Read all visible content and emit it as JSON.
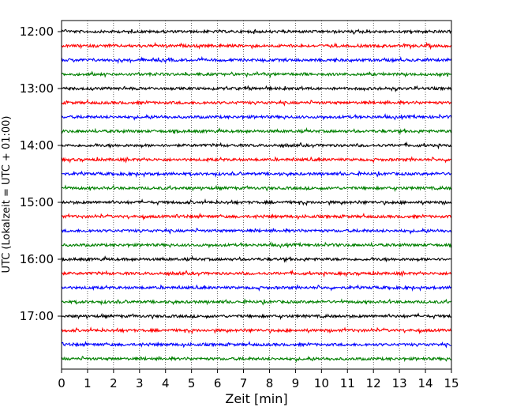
{
  "chart_data": {
    "type": "line",
    "xlabel": "Zeit  [min]",
    "ylabel": "UTC (Lokalzeit = UTC + 01:00)",
    "xlim": [
      0,
      15
    ],
    "x_ticks": [
      "0",
      "1",
      "2",
      "3",
      "4",
      "5",
      "6",
      "7",
      "8",
      "9",
      "10",
      "11",
      "12",
      "13",
      "14",
      "15"
    ],
    "y_ticks": [
      "12:00",
      "13:00",
      "14:00",
      "15:00",
      "16:00",
      "17:00"
    ],
    "grid": "vertical-dotted",
    "trace_interval_min": 15,
    "trace_start": "12:00",
    "trace_count": 24,
    "trace_colors": [
      "#000000",
      "#ff0000",
      "#0000ff",
      "#008000"
    ]
  }
}
